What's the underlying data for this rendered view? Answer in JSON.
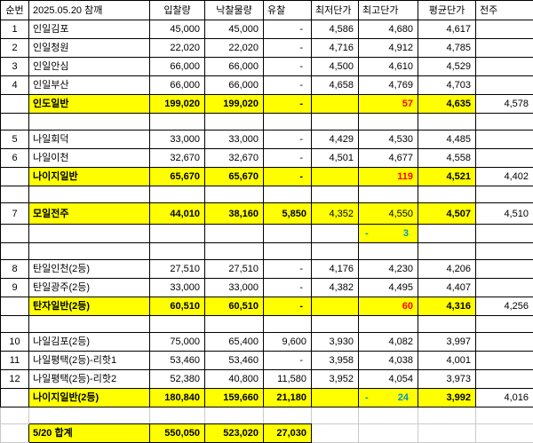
{
  "colors": {
    "highlight": "#FFFF00",
    "delta_positive_text": "#FF0000",
    "delta_negative_text": "#0096C8",
    "grid_light": "#C9C9C9",
    "grid_dark": "#000000"
  },
  "format": {
    "neg_dash": "-"
  },
  "table": {
    "headers": [
      "순번",
      "2025.05.20 참깨",
      "입찰량",
      "낙찰물량",
      "유찰",
      "최저단가",
      "최고단가",
      "평균단가",
      "전주"
    ],
    "rows": [
      {
        "type": "data",
        "no": "1",
        "name": "인일김포",
        "bid": "45,000",
        "won": "45,000",
        "fail": "-",
        "min": "4,586",
        "max": "4,680",
        "avg": "4,617",
        "prev": ""
      },
      {
        "type": "data",
        "no": "2",
        "name": "인일청원",
        "bid": "22,020",
        "won": "22,020",
        "fail": "-",
        "min": "4,716",
        "max": "4,912",
        "avg": "4,785",
        "prev": ""
      },
      {
        "type": "data",
        "no": "3",
        "name": "인일안심",
        "bid": "66,000",
        "won": "66,000",
        "fail": "-",
        "min": "4,500",
        "max": "4,610",
        "avg": "4,529",
        "prev": ""
      },
      {
        "type": "data",
        "no": "4",
        "name": "인일부산",
        "bid": "66,000",
        "won": "66,000",
        "fail": "-",
        "min": "4,658",
        "max": "4,769",
        "avg": "4,703",
        "prev": ""
      },
      {
        "type": "subtotal",
        "no": "",
        "name": "인도일반",
        "bid": "199,020",
        "won": "199,020",
        "fail": "-",
        "min": "",
        "max": "57",
        "max_style": "red",
        "avg": "4,635",
        "prev": "4,578"
      },
      {
        "type": "empty"
      },
      {
        "type": "data",
        "no": "5",
        "name": "나일회덕",
        "bid": "33,000",
        "won": "33,000",
        "fail": "-",
        "min": "4,429",
        "max": "4,530",
        "avg": "4,485",
        "prev": ""
      },
      {
        "type": "data",
        "no": "6",
        "name": "나일이천",
        "bid": "32,670",
        "won": "32,670",
        "fail": "-",
        "min": "4,501",
        "max": "4,677",
        "avg": "4,558",
        "prev": ""
      },
      {
        "type": "subtotal",
        "no": "",
        "name": "나이지일반",
        "bid": "65,670",
        "won": "65,670",
        "fail": "-",
        "min": "",
        "max": "119",
        "max_style": "red",
        "avg": "4,521",
        "prev": "4,402"
      },
      {
        "type": "empty"
      },
      {
        "type": "subtotal",
        "tall": true,
        "no": "7",
        "name": "모일전주",
        "bid": "44,010",
        "won": "38,160",
        "fail": "5,850",
        "min": "4,352",
        "max": "4,550",
        "max_style": "plain",
        "avg": "4,507",
        "prev": "4,510"
      },
      {
        "type": "note",
        "max": "3"
      },
      {
        "type": "empty"
      },
      {
        "type": "data",
        "no": "8",
        "name": "탄일인천(2등)",
        "bid": "27,510",
        "won": "27,510",
        "fail": "-",
        "min": "4,176",
        "max": "4,230",
        "avg": "4,206",
        "prev": ""
      },
      {
        "type": "data",
        "no": "9",
        "name": "탄일광주(2등)",
        "bid": "33,000",
        "won": "33,000",
        "fail": "-",
        "min": "4,382",
        "max": "4,495",
        "avg": "4,407",
        "prev": ""
      },
      {
        "type": "subtotal",
        "no": "",
        "name": "탄자일반(2등)",
        "bid": "60,510",
        "won": "60,510",
        "fail": "-",
        "min": "",
        "max": "60",
        "max_style": "red",
        "avg": "4,316",
        "prev": "4,256"
      },
      {
        "type": "empty"
      },
      {
        "type": "data",
        "no": "10",
        "name": "나일김포(2등)",
        "bid": "75,000",
        "won": "65,400",
        "fail": "9,600",
        "min": "3,930",
        "max": "4,082",
        "avg": "3,997",
        "prev": ""
      },
      {
        "type": "data",
        "no": "11",
        "name": "나일평택(2등)-리핫1",
        "bid": "53,460",
        "won": "53,460",
        "fail": "-",
        "min": "3,958",
        "max": "4,038",
        "avg": "4,001",
        "prev": ""
      },
      {
        "type": "data",
        "no": "12",
        "name": "나일평택(2등)-리핫2",
        "bid": "52,380",
        "won": "40,800",
        "fail": "11,580",
        "min": "3,952",
        "max": "4,054",
        "avg": "3,973",
        "prev": ""
      },
      {
        "type": "subtotal",
        "no": "",
        "name": "나이지일반(2등)",
        "bid": "180,840",
        "won": "159,660",
        "fail": "21,180",
        "min": "",
        "max": "24",
        "max_style": "blueneg",
        "avg": "3,992",
        "prev": "4,016"
      },
      {
        "type": "empty_light"
      },
      {
        "type": "total",
        "no": "",
        "name": "5/20 합계",
        "bid": "550,050",
        "won": "523,020",
        "fail": "27,030",
        "min": "",
        "max": "",
        "avg": "",
        "prev": ""
      }
    ]
  }
}
